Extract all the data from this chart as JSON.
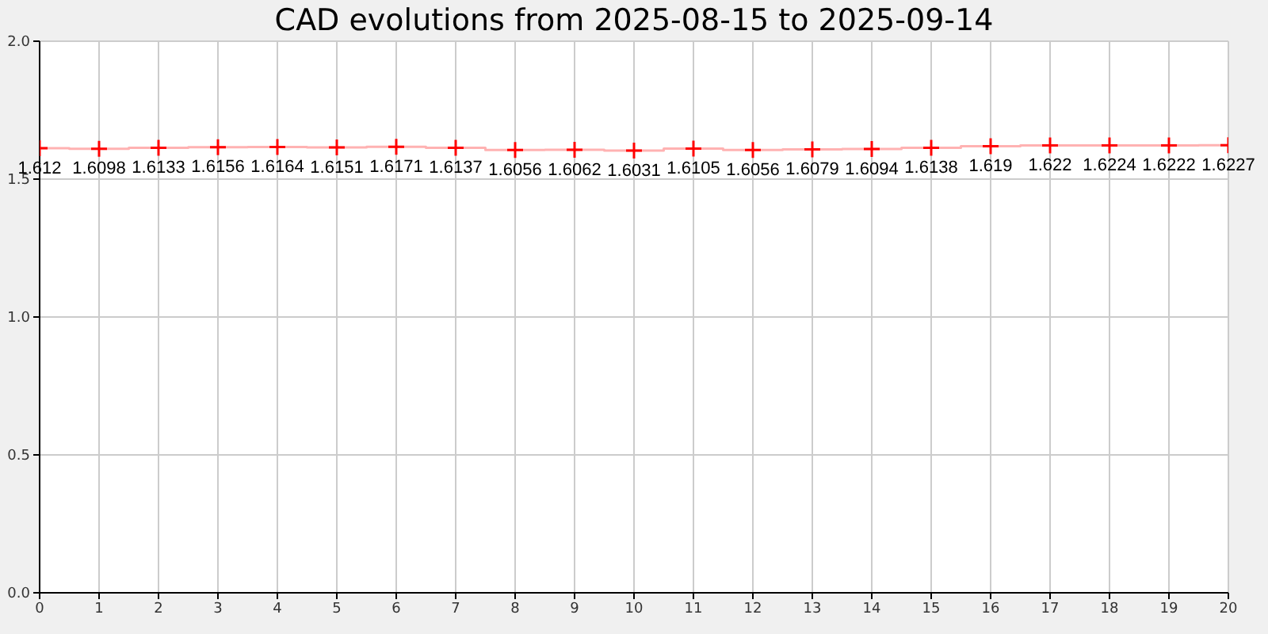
{
  "chart_data": {
    "type": "step",
    "title": "CAD evolutions from 2025-08-15 to 2025-09-14",
    "x": [
      0,
      1,
      2,
      3,
      4,
      5,
      6,
      7,
      8,
      9,
      10,
      11,
      12,
      13,
      14,
      15,
      16,
      17,
      18,
      19,
      20
    ],
    "series": [
      {
        "color": "#ff0000",
        "values": [
          1.612,
          1.6098,
          1.6133,
          1.6156,
          1.6164,
          1.6151,
          1.6171,
          1.6137,
          1.6056,
          1.6062,
          1.6031,
          1.6105,
          1.6056,
          1.6079,
          1.6094,
          1.6138,
          1.619,
          1.622,
          1.6224,
          1.6222,
          1.6227
        ]
      }
    ],
    "xlim": [
      0,
      20
    ],
    "xticks": [
      0,
      1,
      2,
      3,
      4,
      5,
      6,
      7,
      8,
      9,
      10,
      11,
      12,
      13,
      14,
      15,
      16,
      17,
      18,
      19,
      20
    ],
    "ylim": [
      0,
      2
    ],
    "yticks": [
      {
        "value": 0,
        "label": "0.0"
      },
      {
        "value": 0.5,
        "label": "0.5"
      },
      {
        "value": 1,
        "label": "1.0"
      },
      {
        "value": 1.5,
        "label": "1.5"
      },
      {
        "value": 2,
        "label": "2.0"
      }
    ],
    "grid": true,
    "marker": "cross",
    "data_labels": true,
    "legend": false
  }
}
